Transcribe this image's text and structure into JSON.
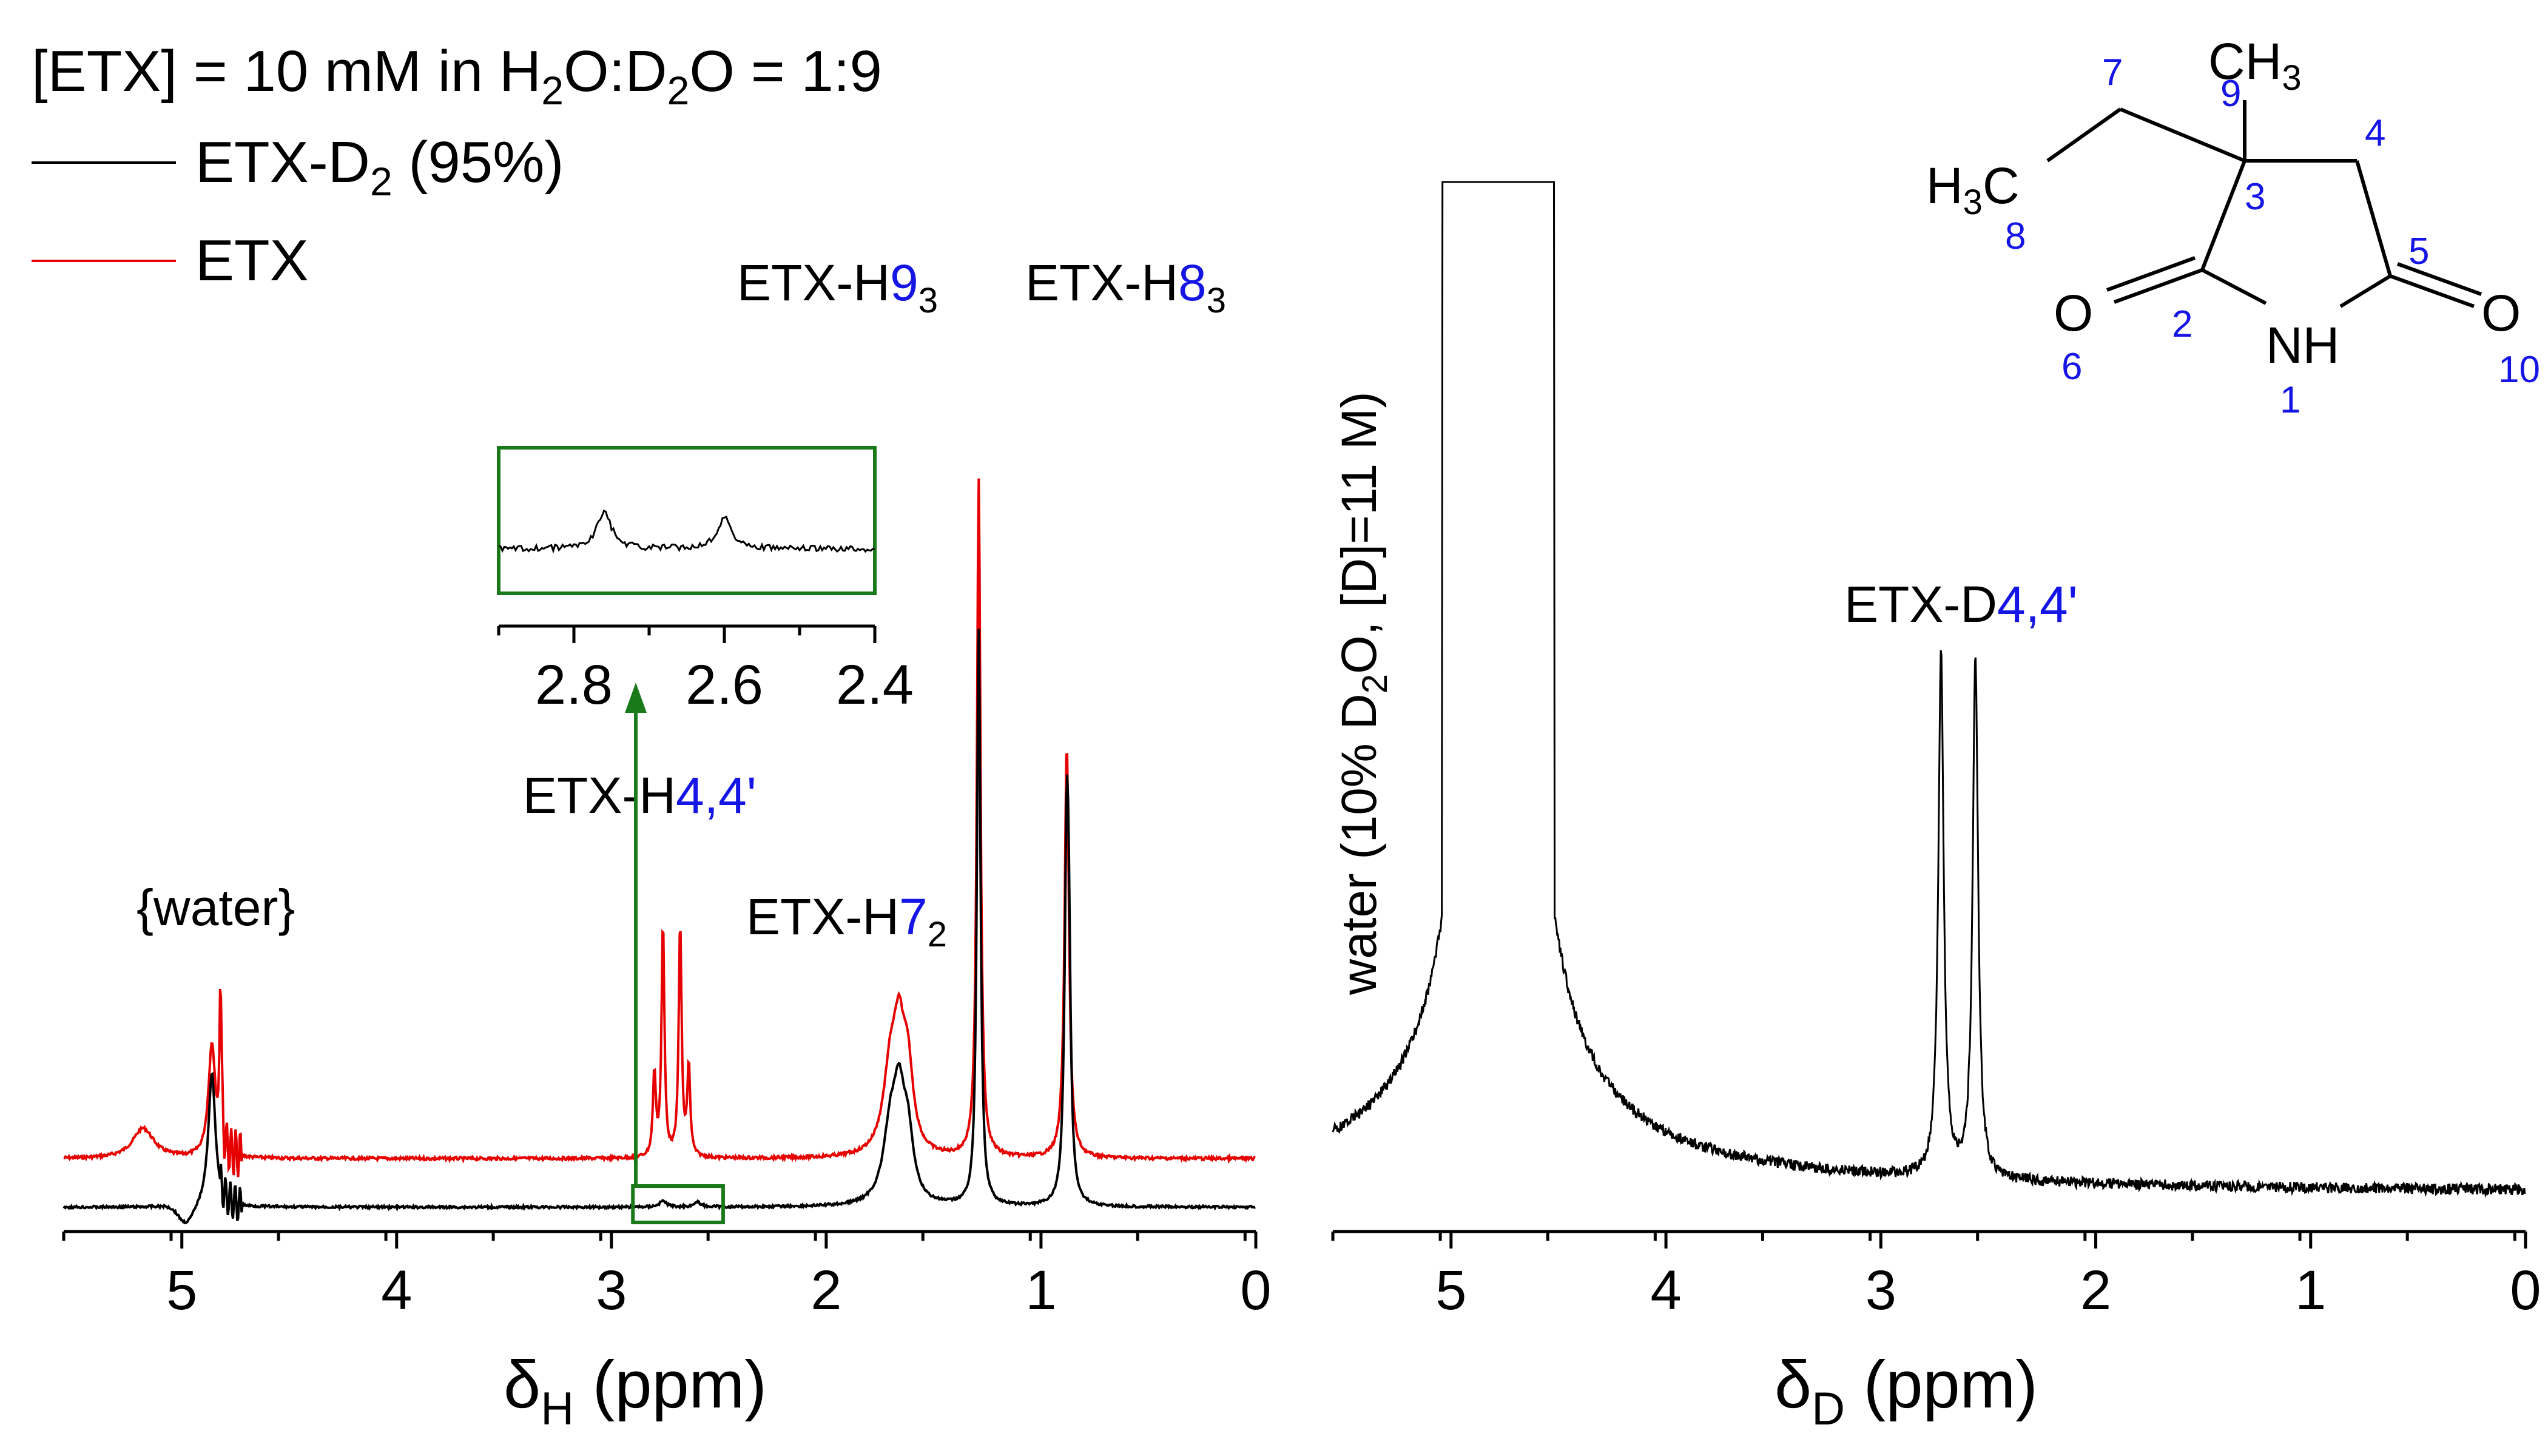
{
  "chart_data": [
    {
      "id": "h-spectrum",
      "type": "line",
      "title": "[ETX] = 10 mM in H2O:D2O = 1:9",
      "title_parts": {
        "a": "[ETX] = 10 mM in H",
        "b": "2",
        "c": "O:D",
        "d": "2",
        "e": "O = 1:9"
      },
      "xlabel": {
        "main": "δ",
        "sub": "H",
        "unit": " (ppm)"
      },
      "ylabel": "",
      "xlim": [
        5.55,
        0
      ],
      "xticks": [
        "5",
        "4",
        "3",
        "2",
        "1",
        "0"
      ],
      "x_tick_values": [
        5,
        4,
        3,
        2,
        1,
        0
      ],
      "legend_position": "top-left",
      "series": [
        {
          "name": "ETX-D2 (95%)",
          "name_parts": {
            "a": "ETX-D",
            "b": "2",
            "c": " (95%)"
          },
          "color": "#000000",
          "peaks": [
            [
              4.86,
              0.22,
              0.02
            ],
            [
              1.7,
              0.12,
              0.04
            ],
            [
              1.66,
              0.14,
              0.03
            ],
            [
              1.62,
              0.1,
              0.03
            ],
            [
              1.29,
              0.95,
              0.01
            ],
            [
              0.88,
              0.58,
              0.012
            ],
            [
              0.87,
              0.24,
              0.01
            ],
            [
              2.76,
              0.01,
              0.02
            ],
            [
              2.6,
              0.008,
              0.02
            ]
          ]
        },
        {
          "name": "ETX",
          "name_parts": {
            "a": "ETX",
            "b": "",
            "c": ""
          },
          "color": "#e60000",
          "peaks": [
            [
              5.18,
              0.08,
              0.06
            ],
            [
              4.86,
              0.3,
              0.02
            ],
            [
              4.82,
              0.45,
              0.005
            ],
            [
              2.8,
              0.22,
              0.008
            ],
            [
              2.76,
              0.62,
              0.008
            ],
            [
              2.68,
              0.62,
              0.008
            ],
            [
              2.64,
              0.24,
              0.008
            ],
            [
              1.7,
              0.22,
              0.04
            ],
            [
              1.66,
              0.25,
              0.03
            ],
            [
              1.62,
              0.2,
              0.03
            ],
            [
              1.29,
              1.8,
              0.01
            ],
            [
              0.88,
              1.1,
              0.012
            ]
          ]
        }
      ],
      "annotations": [
        {
          "text": "{water}",
          "x": 5.05
        },
        {
          "text": "ETX-H",
          "num": "9",
          "sub": "3",
          "x": 1.65
        },
        {
          "text": "ETX-H",
          "num": "8",
          "sub": "3",
          "x": 0.78
        },
        {
          "text": "ETX-H",
          "num": "7",
          "sub": "2",
          "x": 1.6
        },
        {
          "text": "ETX-H",
          "num": "4,4'",
          "sub": "",
          "x": 2.55
        }
      ],
      "inset": {
        "xlim": [
          2.9,
          2.4
        ],
        "xticks": [
          "2.8",
          "2.6",
          "2.4"
        ],
        "x_tick_values": [
          2.8,
          2.6,
          2.4
        ],
        "zoom_region": [
          2.9,
          2.48
        ],
        "box_color": "#1a7a1a"
      }
    },
    {
      "id": "d-spectrum",
      "type": "line",
      "xlabel": {
        "main": "δ",
        "sub": "D",
        "unit": " (ppm)"
      },
      "ylabel": {
        "a": "water (10% D",
        "b": "2",
        "c": "O, [D]=11 M)"
      },
      "xlim": [
        5.55,
        0
      ],
      "xticks": [
        "5",
        "4",
        "3",
        "2",
        "1",
        "0"
      ],
      "x_tick_values": [
        5,
        4,
        3,
        2,
        1,
        0
      ],
      "series": [
        {
          "name": "ETX-D2",
          "color": "#000000",
          "peaks": [
            [
              4.78,
              3.0,
              0.3
            ],
            [
              2.72,
              0.75,
              0.015
            ],
            [
              2.56,
              0.75,
              0.015
            ]
          ]
        }
      ],
      "annotations": [
        {
          "text": "ETX-D",
          "num": "4,4'",
          "x": 2.64
        }
      ]
    }
  ],
  "structure": {
    "atoms": {
      "ch3": "CH",
      "ch3_sub": "3",
      "h3c_h": "H",
      "h3c_sub": "3",
      "h3c_c": "C",
      "nh": "NH",
      "o_left": "O",
      "o_right": "O"
    },
    "numbers": [
      "1",
      "2",
      "3",
      "4",
      "5",
      "6",
      "7",
      "8",
      "9",
      "10"
    ]
  }
}
